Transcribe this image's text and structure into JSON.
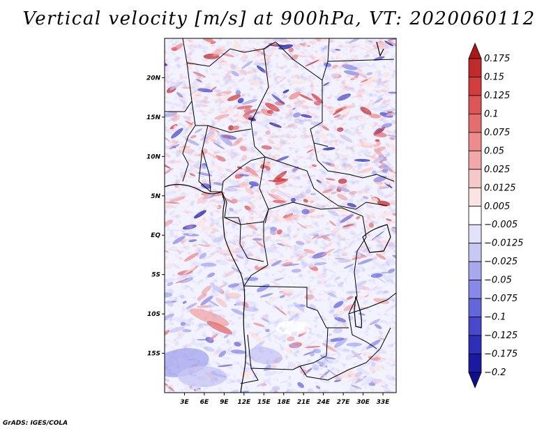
{
  "title": "Vertical velocity [m/s] at 900hPa, VT: 2020060112",
  "credit": "GrADS: IGES/COLA",
  "chart_data": {
    "type": "heatmap",
    "title": "Vertical velocity [m/s] at 900hPa, VT: 2020060112",
    "variable": "Vertical velocity",
    "units": "m/s",
    "level": "900hPa",
    "valid_time": "2020060112",
    "lon_range": [
      0,
      35
    ],
    "lat_range": [
      -20,
      25
    ],
    "lat_ticks": [
      {
        "value": 20,
        "label": "20N"
      },
      {
        "value": 15,
        "label": "15N"
      },
      {
        "value": 10,
        "label": "10N"
      },
      {
        "value": 5,
        "label": "5N"
      },
      {
        "value": 0,
        "label": "EQ"
      },
      {
        "value": -5,
        "label": "5S"
      },
      {
        "value": -10,
        "label": "10S"
      },
      {
        "value": -15,
        "label": "15S"
      }
    ],
    "lon_ticks": [
      {
        "value": 3,
        "label": "3E"
      },
      {
        "value": 6,
        "label": "6E"
      },
      {
        "value": 9,
        "label": "9E"
      },
      {
        "value": 12,
        "label": "12E"
      },
      {
        "value": 15,
        "label": "15E"
      },
      {
        "value": 18,
        "label": "18E"
      },
      {
        "value": 21,
        "label": "21E"
      },
      {
        "value": 24,
        "label": "24E"
      },
      {
        "value": 27,
        "label": "27E"
      },
      {
        "value": 30,
        "label": "30E"
      },
      {
        "value": 33,
        "label": "33E"
      }
    ],
    "colorbar": {
      "labels": [
        "0.175",
        "0.15",
        "0.125",
        "0.1",
        "0.075",
        "0.05",
        "0.025",
        "0.0125",
        "0.005",
        "−0.005",
        "−0.0125",
        "−0.025",
        "−0.05",
        "−0.075",
        "−0.1",
        "−0.125",
        "−0.175",
        "−0.2"
      ],
      "colors": [
        "#aa1818",
        "#c02a2a",
        "#d23c3c",
        "#dd5656",
        "#e46e6e",
        "#ec8c8c",
        "#f2a8a8",
        "#f7c8c8",
        "#fbe3e3",
        "#ffffff",
        "#e2e2fb",
        "#c8c8f5",
        "#a8a8ee",
        "#8888e6",
        "#6666dc",
        "#4848cc",
        "#2e2eb8",
        "#1a1aa0",
        "#10108a"
      ]
    }
  }
}
